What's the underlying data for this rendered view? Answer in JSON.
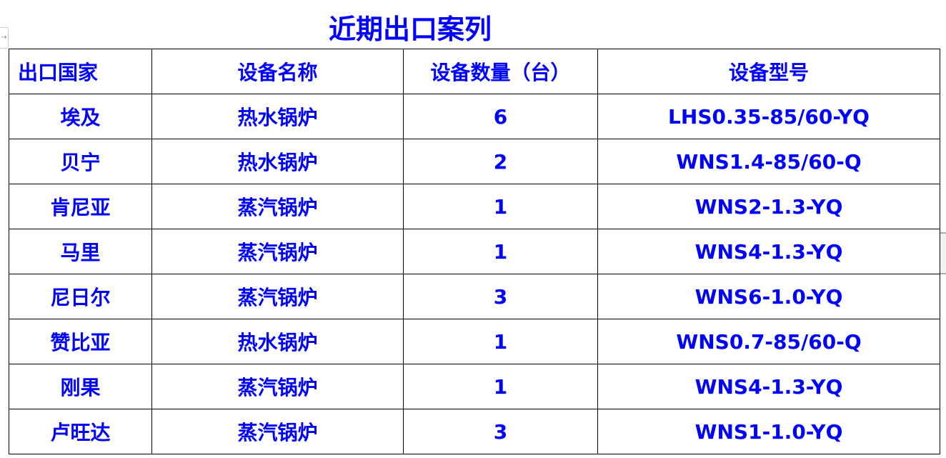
{
  "title": "近期出口案列",
  "headers": [
    "出口国家",
    "设备名称",
    "设备数量（台）",
    "设备型号"
  ],
  "rows": [
    [
      "埃及",
      "热水锅炉",
      "6",
      "LHS0.35-85/60-YQ"
    ],
    [
      "贝宁",
      "热水锅炉",
      "2",
      "WNS1.4-85/60-Q"
    ],
    [
      "肯尼亚",
      "蒸汽锅炉",
      "1",
      "WNS2-1.3-YQ"
    ],
    [
      "马里",
      "蒸汽锅炉",
      "1",
      "WNS4-1.3-YQ"
    ],
    [
      "尼日尔",
      "蒸汽锅炉",
      "3",
      "WNS6-1.0-YQ"
    ],
    [
      "赞比亚",
      "热水锅炉",
      "1",
      "WNS0.7-85/60-Q"
    ],
    [
      "刚果",
      "蒸汽锅炉",
      "1",
      "WNS4-1.3-YQ"
    ],
    [
      "卢旺达",
      "蒸汽锅炉",
      "3",
      "WNS1-1.0-YQ"
    ]
  ],
  "colors": {
    "text": "#0000ff",
    "border": "#000000"
  }
}
